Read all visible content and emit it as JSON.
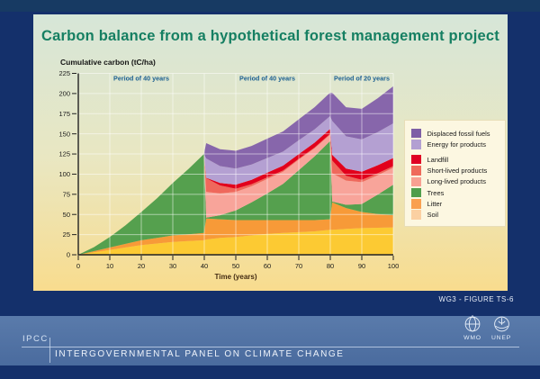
{
  "slide": {
    "title": "Carbon balance from a hypothetical forest management project",
    "figure_ref": "WG3 - FIGURE TS-6"
  },
  "chart": {
    "y_axis_label": "Cumulative carbon (tC/ha)",
    "x_axis_label": "Time (years)",
    "annotations": [
      {
        "text": "Period of 40 years",
        "x_center_year": 20
      },
      {
        "text": "Period of 40 years",
        "x_center_year": 60
      },
      {
        "text": "Period of 20 years",
        "x_center_year": 90
      }
    ]
  },
  "chart_data": {
    "type": "area",
    "stacked": true,
    "title": "Carbon balance from a hypothetical forest management project",
    "xlabel": "Time (years)",
    "ylabel": "Cumulative carbon (tC/ha)",
    "xlim": [
      0,
      100
    ],
    "ylim": [
      0,
      225
    ],
    "x_ticks": [
      0,
      10,
      20,
      30,
      40,
      50,
      60,
      70,
      80,
      90,
      100
    ],
    "y_ticks": [
      0,
      25,
      50,
      75,
      100,
      125,
      150,
      175,
      200,
      225
    ],
    "grid": true,
    "legend_position": "right",
    "x": [
      0,
      5,
      10,
      15,
      20,
      25,
      30,
      35,
      39.9,
      40.6,
      45,
      50,
      55,
      60,
      65,
      70,
      75,
      79.9,
      80.6,
      85,
      90,
      95,
      100
    ],
    "series": [
      {
        "name": "Soil",
        "color": "#fcca33",
        "values": [
          0,
          3,
          6,
          9,
          12,
          14,
          16,
          17,
          18,
          19,
          21,
          22,
          24,
          26,
          27,
          28,
          29,
          31,
          31,
          32,
          33,
          33.5,
          34
        ]
      },
      {
        "name": "Litter",
        "color": "#f79a38",
        "values": [
          0,
          1.5,
          3,
          4.5,
          6,
          7,
          8,
          8.5,
          9,
          26,
          23,
          21,
          19,
          17,
          16,
          15,
          14,
          13,
          34,
          26,
          20,
          17,
          15
        ]
      },
      {
        "name": "Trees",
        "color": "#55a04e",
        "values": [
          0,
          5,
          13,
          23,
          35,
          49,
          65,
          81,
          98,
          1,
          5,
          12,
          22,
          33,
          45,
          62,
          79,
          97,
          1,
          4,
          10,
          24,
          38
        ]
      },
      {
        "name": "Long-lived products",
        "color": "#f8a49a",
        "values": [
          0,
          0,
          0,
          0,
          0,
          0,
          0,
          0,
          0,
          32,
          27,
          23,
          20,
          18,
          15,
          13,
          10,
          8,
          35,
          30,
          27,
          24,
          21
        ]
      },
      {
        "name": "Short-lived products",
        "color": "#ef685c",
        "values": [
          0,
          0,
          0,
          0,
          0,
          0,
          0,
          0,
          0,
          17,
          10,
          4,
          2.5,
          2,
          1.5,
          1,
          1,
          1,
          16,
          6,
          3,
          2.5,
          2
        ]
      },
      {
        "name": "Landfill",
        "color": "#e2001c",
        "values": [
          0,
          0,
          0,
          0,
          0,
          0,
          0,
          0,
          0,
          0.5,
          3,
          5,
          5.5,
          6,
          6,
          6,
          6,
          6,
          7,
          9,
          10,
          10,
          10
        ]
      },
      {
        "name": "Energy for products",
        "color": "#b4a0d2",
        "values": [
          0,
          0,
          0,
          0,
          0,
          0,
          0,
          0,
          0,
          24,
          21,
          20,
          19,
          18,
          17.5,
          17,
          16.5,
          16,
          42,
          40,
          40,
          41,
          43
        ]
      },
      {
        "name": "Displaced fossil fuels",
        "color": "#8766ab",
        "values": [
          0,
          0,
          0,
          0,
          0,
          0,
          0,
          0,
          0,
          19,
          21,
          22,
          23,
          24,
          25,
          26,
          27.5,
          29,
          35,
          36,
          38,
          42,
          46
        ]
      }
    ]
  },
  "legend": {
    "items": [
      {
        "label": "Displaced fossil fuels",
        "color": "#7e5fa6"
      },
      {
        "label": "Energy for products",
        "color": "#b3a0d2"
      },
      {
        "label": "Landfill",
        "color": "#df0024"
      },
      {
        "label": "Short-lived products",
        "color": "#ef6a5b"
      },
      {
        "label": "Long-lived products",
        "color": "#f8a092"
      },
      {
        "label": "Trees",
        "color": "#4f9e4c"
      },
      {
        "label": "Litter",
        "color": "#f9a050"
      },
      {
        "label": "Soil",
        "color": "#fbd0a2"
      }
    ]
  },
  "footer": {
    "org_abbr": "IPCC",
    "org_name": "INTERGOVERNMENTAL PANEL ON CLIMATE CHANGE",
    "logos": [
      {
        "name": "WMO"
      },
      {
        "name": "UNEP"
      }
    ]
  },
  "colors": {
    "page_bg": "#14306b",
    "card_top": "#d6e6d8",
    "card_bottom": "#f8dc8e",
    "title_text": "#157f62",
    "annotation_text": "#1d6091",
    "footer_band": "#50719f",
    "gridline": "#ffffff"
  }
}
